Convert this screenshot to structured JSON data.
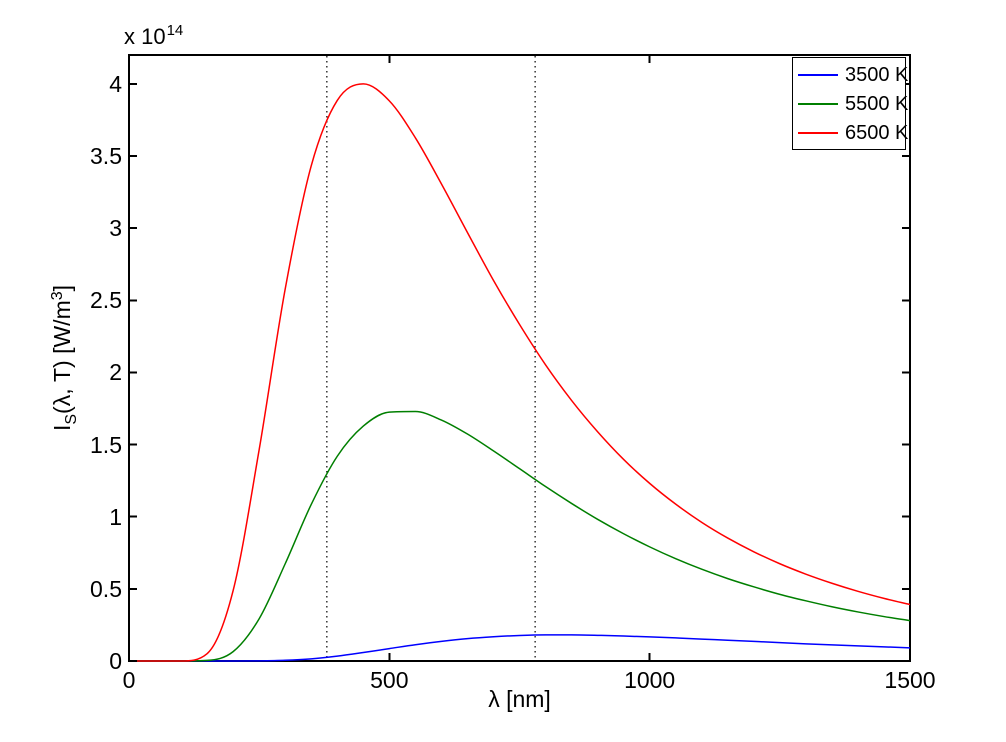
{
  "figure": {
    "background": "#ffffff",
    "exponent_label": {
      "base": "x 10",
      "exponent": "14"
    },
    "x_axis": {
      "label": "λ [nm]",
      "ticks": [
        "0",
        "500",
        "1000",
        "1500"
      ]
    },
    "y_axis": {
      "label_parts": {
        "pre": "I",
        "sub": "S",
        "mid": "(λ, T) [W/m",
        "sup": "3",
        "post": "]"
      },
      "ticks": [
        "0",
        "0.5",
        "1",
        "1.5",
        "2",
        "2.5",
        "3",
        "3.5",
        "4"
      ]
    }
  },
  "legend": {
    "position": "top-right",
    "entries": [
      {
        "label": "3500 K",
        "color": "#0000ff"
      },
      {
        "label": "5500 K",
        "color": "#007f00"
      },
      {
        "label": "6500 K",
        "color": "#ff0000"
      }
    ]
  },
  "chart_data": {
    "type": "line",
    "title": "",
    "xlabel": "λ [nm]",
    "ylabel": "I_S(λ, T) [W/m^3]",
    "y_units": "values in 10^14 W/m^3",
    "xlim": [
      0,
      1500
    ],
    "ylim_1e14": [
      0,
      4.2
    ],
    "x_ticks": [
      0,
      500,
      1000,
      1500
    ],
    "y_ticks": [
      0,
      0.5,
      1,
      1.5,
      2,
      2.5,
      3,
      3.5,
      4
    ],
    "grid": false,
    "vertical_dotted_lines_nm": [
      380,
      780
    ],
    "vline_color": "#000000",
    "x_nm": [
      0,
      50,
      100,
      150,
      200,
      250,
      300,
      350,
      400,
      450,
      500,
      550,
      600,
      650,
      700,
      750,
      800,
      850,
      900,
      950,
      1000,
      1050,
      1100,
      1150,
      1200,
      1250,
      1300,
      1350,
      1400,
      1450,
      1500
    ],
    "series": [
      {
        "name": "3500 K",
        "color": "#0000ff",
        "values_1e14": [
          0,
          0,
          0,
          0,
          0,
          0.001,
          0.005,
          0.015,
          0.034,
          0.059,
          0.086,
          0.113,
          0.136,
          0.155,
          0.168,
          0.177,
          0.181,
          0.181,
          0.178,
          0.173,
          0.167,
          0.16,
          0.152,
          0.144,
          0.136,
          0.127,
          0.119,
          0.112,
          0.105,
          0.098,
          0.091
        ]
      },
      {
        "name": "5500 K",
        "color": "#007f00",
        "values_1e14": [
          0,
          0,
          0,
          0.004,
          0.065,
          0.293,
          0.674,
          1.085,
          1.419,
          1.628,
          1.725,
          1.729,
          1.67,
          1.573,
          1.456,
          1.333,
          1.209,
          1.092,
          0.982,
          0.882,
          0.791,
          0.709,
          0.636,
          0.571,
          0.514,
          0.462,
          0.417,
          0.376,
          0.34,
          0.308,
          0.28
        ]
      },
      {
        "name": "6500 K",
        "color": "#ff0000",
        "values_1e14": [
          0,
          0,
          0,
          0.051,
          0.488,
          1.465,
          2.578,
          3.432,
          3.885,
          4.0,
          3.882,
          3.626,
          3.307,
          2.97,
          2.638,
          2.333,
          2.053,
          1.806,
          1.589,
          1.397,
          1.231,
          1.087,
          0.961,
          0.852,
          0.757,
          0.674,
          0.602,
          0.539,
          0.483,
          0.434,
          0.391
        ]
      }
    ]
  }
}
